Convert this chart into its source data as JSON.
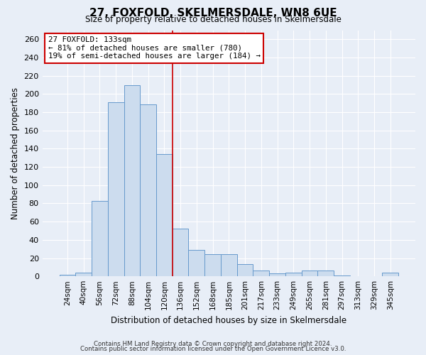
{
  "title": "27, FOXFOLD, SKELMERSDALE, WN8 6UE",
  "subtitle": "Size of property relative to detached houses in Skelmersdale",
  "xlabel": "Distribution of detached houses by size in Skelmersdale",
  "ylabel": "Number of detached properties",
  "bar_labels": [
    "24sqm",
    "40sqm",
    "56sqm",
    "72sqm",
    "88sqm",
    "104sqm",
    "120sqm",
    "136sqm",
    "152sqm",
    "168sqm",
    "185sqm",
    "201sqm",
    "217sqm",
    "233sqm",
    "249sqm",
    "265sqm",
    "281sqm",
    "297sqm",
    "313sqm",
    "329sqm",
    "345sqm"
  ],
  "bar_heights": [
    2,
    4,
    83,
    191,
    210,
    189,
    134,
    52,
    29,
    24,
    24,
    13,
    6,
    3,
    4,
    6,
    6,
    1,
    0,
    0,
    4
  ],
  "bar_color": "#ccdcee",
  "bar_edge_color": "#6699cc",
  "vline_color": "#cc0000",
  "annotation_title": "27 FOXFOLD: 133sqm",
  "annotation_line1": "← 81% of detached houses are smaller (780)",
  "annotation_line2": "19% of semi-detached houses are larger (184) →",
  "annotation_box_facecolor": "#ffffff",
  "annotation_box_edgecolor": "#cc0000",
  "ylim": [
    0,
    270
  ],
  "yticks": [
    0,
    20,
    40,
    60,
    80,
    100,
    120,
    140,
    160,
    180,
    200,
    220,
    240,
    260
  ],
  "footer1": "Contains HM Land Registry data © Crown copyright and database right 2024.",
  "footer2": "Contains public sector information licensed under the Open Government Licence v3.0.",
  "bg_color": "#e8eef7",
  "plot_bg_color": "#e8eef7",
  "grid_color": "#ffffff"
}
